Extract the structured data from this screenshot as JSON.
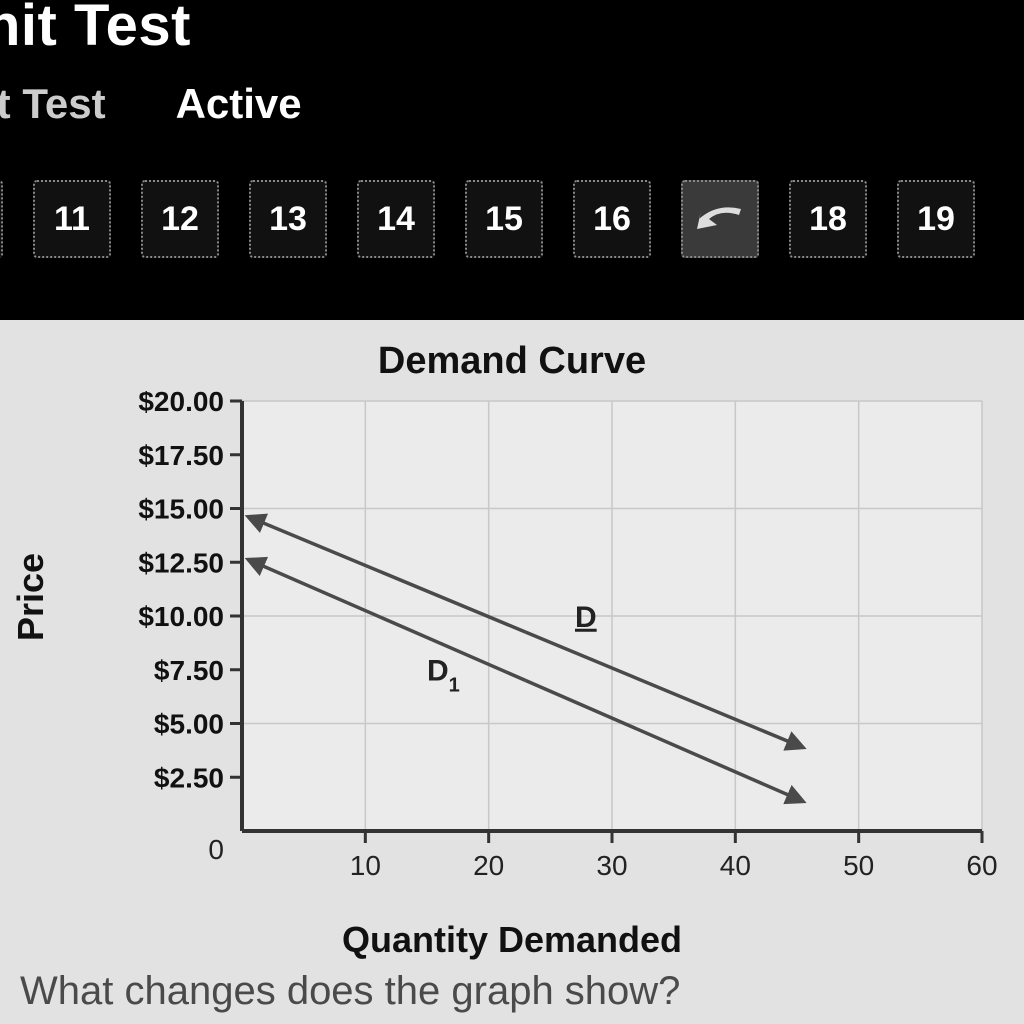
{
  "header": {
    "title": "nit Test",
    "tab_a": "it Test",
    "tab_b": "Active"
  },
  "nav": {
    "items": [
      {
        "label": "",
        "partial": true
      },
      {
        "label": "11"
      },
      {
        "label": "12"
      },
      {
        "label": "13"
      },
      {
        "label": "14"
      },
      {
        "label": "15"
      },
      {
        "label": "16"
      },
      {
        "label": "back",
        "icon": true
      },
      {
        "label": "18"
      },
      {
        "label": "19"
      }
    ]
  },
  "chart": {
    "type": "line",
    "title": "Demand Curve",
    "xlabel": "Quantity Demanded",
    "ylabel": "Price",
    "xlim": [
      0,
      60
    ],
    "ylim": [
      0,
      20
    ],
    "xticks": [
      10,
      20,
      30,
      40,
      50,
      60
    ],
    "yticks": [
      {
        "v": 2.5,
        "label": "$2.50"
      },
      {
        "v": 5.0,
        "label": "$5.00"
      },
      {
        "v": 7.5,
        "label": "$7.50"
      },
      {
        "v": 10.0,
        "label": "$10.00"
      },
      {
        "v": 12.5,
        "label": "$12.50"
      },
      {
        "v": 15.0,
        "label": "$15.00"
      },
      {
        "v": 17.5,
        "label": "$17.50"
      },
      {
        "v": 20.0,
        "label": "$20.00"
      }
    ],
    "grid_xstep": 10,
    "grid_ystep": 5,
    "grid_color": "#c8c8c8",
    "axis_color": "#333333",
    "background_color": "#ebebeb",
    "line_width": 3.5,
    "arrow_size": 12,
    "series": [
      {
        "name": "D",
        "x1": 1,
        "y1": 14.5,
        "x2": 45,
        "y2": 4.0,
        "label_x": 27,
        "label_y": 9.5,
        "color": "#4a4a4a"
      },
      {
        "name": "D1",
        "x1": 1,
        "y1": 12.5,
        "x2": 45,
        "y2": 1.5,
        "label_x": 15,
        "label_y": 7.0,
        "color": "#4a4a4a",
        "subscript": "1",
        "base": "D"
      }
    ],
    "tick_fontsize": 28,
    "label_fontsize": 36,
    "title_fontsize": 38
  },
  "question": "What changes does the graph show?"
}
